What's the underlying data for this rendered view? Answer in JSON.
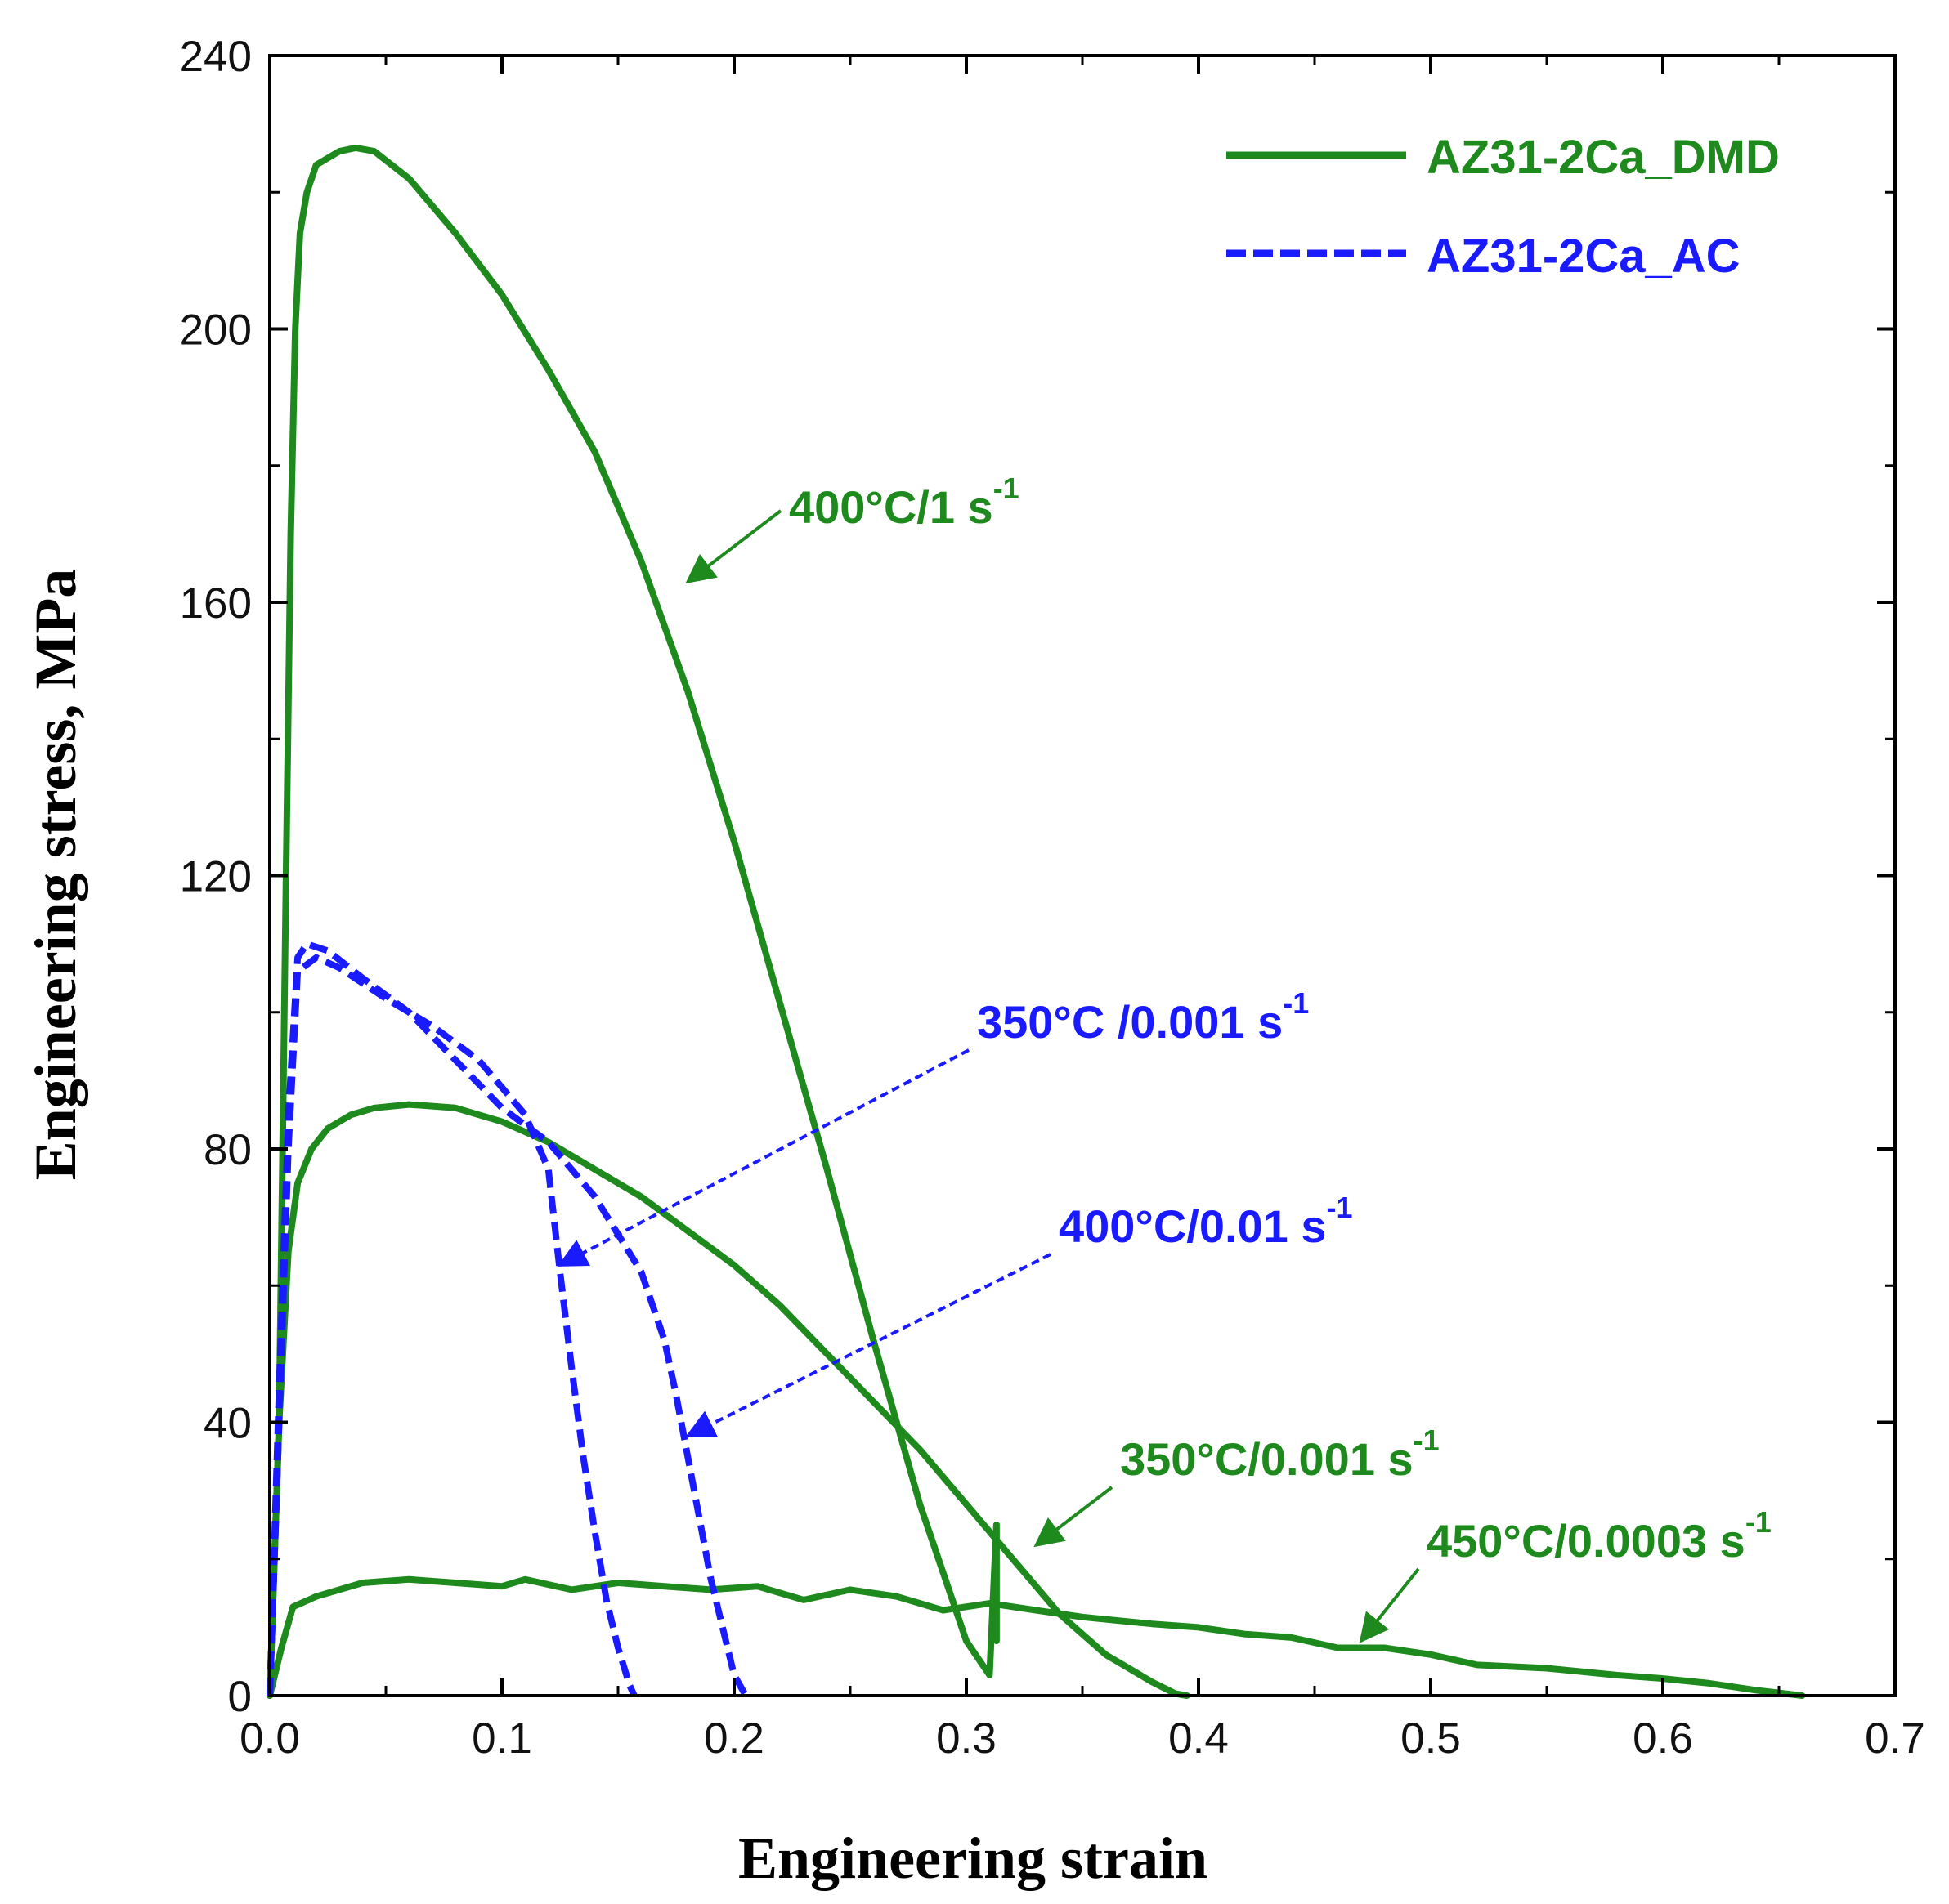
{
  "chart_data": {
    "type": "line",
    "title": "",
    "xlabel": "Engineering strain",
    "ylabel": "Engineering stress, MPa",
    "xlim": [
      0.0,
      0.7
    ],
    "ylim": [
      0,
      240
    ],
    "xticks": [
      "0.0",
      "0.1",
      "0.2",
      "0.3",
      "0.4",
      "0.5",
      "0.6",
      "0.7"
    ],
    "yticks": [
      "0",
      "40",
      "80",
      "120",
      "160",
      "200",
      "240"
    ],
    "legend_position": "top-right",
    "legend": [
      {
        "label": "AZ31-2Ca_DMD",
        "style": "solid",
        "color": "#1e8a1e"
      },
      {
        "label": "AZ31-2Ca_AC",
        "style": "dashed",
        "color": "#1a1aff"
      }
    ],
    "series": [
      {
        "name": "AZ31-2Ca_DMD 400°C/1 s-1",
        "group": "AZ31-2Ca_DMD",
        "x": [
          0.0,
          0.004,
          0.007,
          0.009,
          0.011,
          0.013,
          0.016,
          0.02,
          0.03,
          0.037,
          0.045,
          0.06,
          0.08,
          0.1,
          0.12,
          0.14,
          0.16,
          0.18,
          0.2,
          0.22,
          0.24,
          0.26,
          0.28,
          0.3,
          0.31,
          0.313,
          0.313
        ],
        "y": [
          0,
          40,
          120,
          170,
          200,
          214,
          220,
          224,
          226,
          226.5,
          226,
          222,
          214,
          205,
          194,
          182,
          166,
          147,
          125,
          101,
          77,
          52,
          28,
          8,
          3,
          25,
          8
        ]
      },
      {
        "name": "AZ31-2Ca_DMD 350°C/0.001 s-1",
        "group": "AZ31-2Ca_DMD",
        "x": [
          0.0,
          0.004,
          0.008,
          0.012,
          0.018,
          0.025,
          0.035,
          0.045,
          0.06,
          0.08,
          0.1,
          0.12,
          0.14,
          0.16,
          0.18,
          0.2,
          0.22,
          0.24,
          0.26,
          0.28,
          0.3,
          0.32,
          0.34,
          0.36,
          0.38,
          0.39,
          0.395
        ],
        "y": [
          0,
          40,
          65,
          75,
          80,
          83,
          85,
          86,
          86.5,
          86,
          84,
          81,
          77,
          73,
          68,
          63,
          57,
          50,
          43,
          36,
          28,
          20,
          12,
          6,
          2,
          0.3,
          0
        ]
      },
      {
        "name": "AZ31-2Ca_DMD 450°C/0.0003 s-1",
        "group": "AZ31-2Ca_DMD",
        "x": [
          0.0,
          0.005,
          0.01,
          0.02,
          0.04,
          0.06,
          0.08,
          0.1,
          0.11,
          0.13,
          0.15,
          0.17,
          0.19,
          0.21,
          0.23,
          0.25,
          0.27,
          0.29,
          0.31,
          0.33,
          0.35,
          0.38,
          0.4,
          0.42,
          0.44,
          0.46,
          0.48,
          0.5,
          0.52,
          0.55,
          0.58,
          0.6,
          0.62,
          0.64,
          0.66
        ],
        "y": [
          0,
          7,
          13,
          14.5,
          16.5,
          17,
          16.5,
          16,
          17,
          15.5,
          16.5,
          16,
          15.5,
          16,
          14,
          15.5,
          14.5,
          12.5,
          13.5,
          12.5,
          11.5,
          10.5,
          10,
          9,
          8.5,
          7,
          7,
          6,
          4.5,
          4,
          3,
          2.5,
          1.8,
          0.8,
          0
        ]
      },
      {
        "name": "AZ31-2Ca_AC 350°C /0.001 s-1",
        "group": "AZ31-2Ca_AC",
        "x": [
          0.0,
          0.004,
          0.008,
          0.012,
          0.02,
          0.03,
          0.05,
          0.07,
          0.09,
          0.11,
          0.12,
          0.125,
          0.13,
          0.135,
          0.14,
          0.145,
          0.15,
          0.155,
          0.157
        ],
        "y": [
          0,
          40,
          80,
          106,
          108,
          106.5,
          102,
          98,
          93,
          85,
          77,
          62,
          48,
          35,
          24,
          14,
          7,
          1.5,
          0
        ]
      },
      {
        "name": "AZ31-2Ca_AC 400°C/0.01 s-1",
        "group": "AZ31-2Ca_AC",
        "x": [
          0.0,
          0.004,
          0.008,
          0.012,
          0.016,
          0.025,
          0.04,
          0.06,
          0.08,
          0.1,
          0.12,
          0.14,
          0.16,
          0.17,
          0.175,
          0.18,
          0.185,
          0.19,
          0.195,
          0.2,
          0.205
        ],
        "y": [
          0,
          45,
          85,
          108,
          110,
          109,
          105,
          100,
          93,
          86,
          81,
          73,
          62,
          52,
          44,
          35,
          26,
          17,
          10,
          3,
          0
        ]
      }
    ],
    "annotations": [
      {
        "text": "400°C/1 s",
        "sup": "-1",
        "color": "#1e8a1e",
        "points_to": {
          "x": 0.18,
          "y": 163
        }
      },
      {
        "text": "350°C /0.001 s",
        "sup": "-1",
        "color": "#1a1aff",
        "points_to": {
          "x": 0.125,
          "y": 63
        }
      },
      {
        "text": "400°C/0.01 s",
        "sup": "-1",
        "color": "#1a1aff",
        "points_to": {
          "x": 0.18,
          "y": 38
        }
      },
      {
        "text": "350°C/0.001 s",
        "sup": "-1",
        "color": "#1e8a1e",
        "points_to": {
          "x": 0.33,
          "y": 22
        }
      },
      {
        "text": "450°C/0.0003 s",
        "sup": "-1",
        "color": "#1e8a1e",
        "points_to": {
          "x": 0.47,
          "y": 8
        }
      }
    ]
  }
}
